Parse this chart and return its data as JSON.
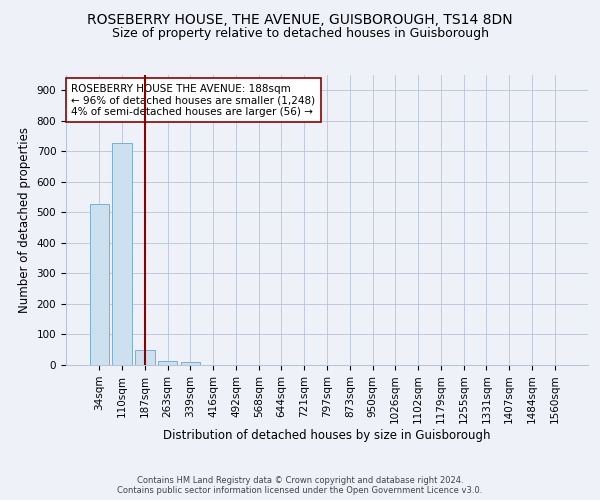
{
  "title": "ROSEBERRY HOUSE, THE AVENUE, GUISBOROUGH, TS14 8DN",
  "subtitle": "Size of property relative to detached houses in Guisborough",
  "xlabel": "Distribution of detached houses by size in Guisborough",
  "ylabel": "Number of detached properties",
  "bar_labels": [
    "34sqm",
    "110sqm",
    "187sqm",
    "263sqm",
    "339sqm",
    "416sqm",
    "492sqm",
    "568sqm",
    "644sqm",
    "721sqm",
    "797sqm",
    "873sqm",
    "950sqm",
    "1026sqm",
    "1102sqm",
    "1179sqm",
    "1255sqm",
    "1331sqm",
    "1407sqm",
    "1484sqm",
    "1560sqm"
  ],
  "bar_values": [
    528,
    728,
    48,
    12,
    10,
    0,
    0,
    0,
    0,
    0,
    0,
    0,
    0,
    0,
    0,
    0,
    0,
    0,
    0,
    0,
    0
  ],
  "bar_color": "#cce0f0",
  "bar_edge_color": "#7bafd4",
  "vline_x": 2,
  "vline_color": "#8b0000",
  "annotation_text": "ROSEBERRY HOUSE THE AVENUE: 188sqm\n← 96% of detached houses are smaller (1,248)\n4% of semi-detached houses are larger (56) →",
  "annotation_box_color": "#ffffff",
  "annotation_box_edge": "#8b0000",
  "ylim": [
    0,
    950
  ],
  "yticks": [
    0,
    100,
    200,
    300,
    400,
    500,
    600,
    700,
    800,
    900
  ],
  "footer_line1": "Contains HM Land Registry data © Crown copyright and database right 2024.",
  "footer_line2": "Contains public sector information licensed under the Open Government Licence v3.0.",
  "title_fontsize": 10,
  "subtitle_fontsize": 9,
  "xlabel_fontsize": 8.5,
  "ylabel_fontsize": 8.5,
  "tick_fontsize": 7.5,
  "annotation_fontsize": 7.5,
  "footer_fontsize": 6,
  "background_color": "#eef2f8",
  "plot_background": "#eef2f8"
}
